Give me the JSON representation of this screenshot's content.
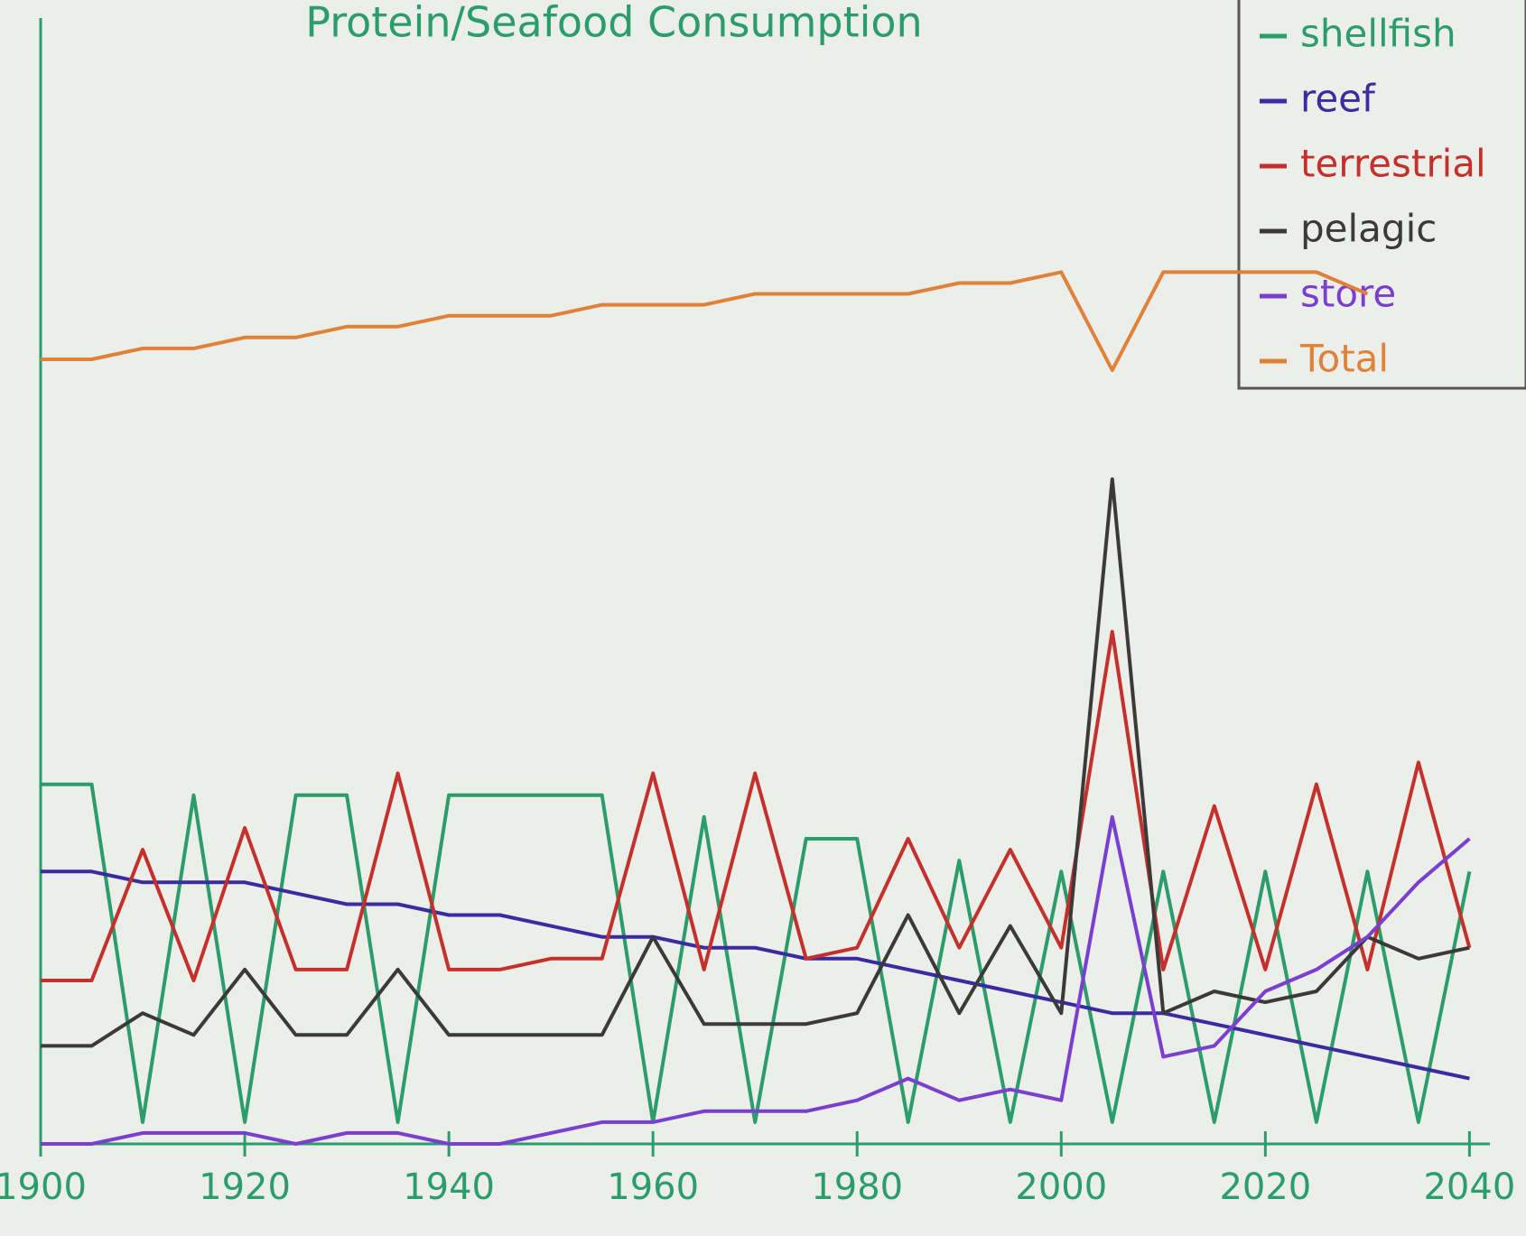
{
  "chart_data": {
    "type": "line",
    "title": "Protein/Seafood Consumption",
    "x": [
      1900,
      1905,
      1910,
      1915,
      1920,
      1925,
      1930,
      1935,
      1940,
      1945,
      1950,
      1955,
      1960,
      1965,
      1970,
      1975,
      1980,
      1985,
      1990,
      1995,
      2000,
      2005,
      2010,
      2015,
      2020,
      2025,
      2030,
      2035,
      2040
    ],
    "xlim": [
      1900,
      2042
    ],
    "xticks": [
      1900,
      1920,
      1940,
      1960,
      1980,
      2000,
      2020,
      2040
    ],
    "ylim": [
      0,
      100
    ],
    "series": [
      {
        "name": "shellfish",
        "color": "#2a9d6a",
        "values": [
          33,
          33,
          2,
          32,
          2,
          32,
          32,
          2,
          32,
          32,
          32,
          32,
          2,
          30,
          2,
          28,
          28,
          2,
          26,
          2,
          25,
          2,
          25,
          2,
          25,
          2,
          25,
          2,
          25
        ]
      },
      {
        "name": "reef",
        "color": "#3b2aa0",
        "values": [
          25,
          25,
          24,
          24,
          24,
          23,
          22,
          22,
          21,
          21,
          20,
          19,
          19,
          18,
          18,
          17,
          17,
          16,
          15,
          14,
          13,
          12,
          12,
          11,
          10,
          9,
          8,
          7,
          6
        ]
      },
      {
        "name": "terrestrial",
        "color": "#c4302b",
        "values": [
          15,
          15,
          27,
          15,
          29,
          16,
          16,
          34,
          16,
          16,
          17,
          17,
          34,
          16,
          34,
          17,
          18,
          28,
          18,
          27,
          18,
          47,
          16,
          31,
          16,
          33,
          16,
          35,
          18
        ]
      },
      {
        "name": "pelagic",
        "color": "#3a3a3a",
        "values": [
          9,
          9,
          12,
          10,
          16,
          10,
          10,
          16,
          10,
          10,
          10,
          10,
          19,
          11,
          11,
          11,
          12,
          21,
          12,
          20,
          12,
          61,
          12,
          14,
          13,
          14,
          19,
          17,
          18
        ]
      },
      {
        "name": "store",
        "color": "#7b3fd0",
        "values": [
          0,
          0,
          1,
          1,
          1,
          0,
          1,
          1,
          0,
          0,
          1,
          2,
          2,
          3,
          3,
          3,
          4,
          6,
          4,
          5,
          4,
          30,
          8,
          9,
          14,
          16,
          19,
          24,
          28
        ]
      },
      {
        "name": "Total",
        "color": "#e0813a",
        "values": [
          72,
          72,
          73,
          73,
          74,
          74,
          75,
          75,
          76,
          76,
          76,
          77,
          77,
          77,
          78,
          78,
          78,
          78,
          79,
          79,
          80,
          71,
          80,
          80,
          80,
          80,
          78,
          null,
          null
        ]
      }
    ]
  }
}
